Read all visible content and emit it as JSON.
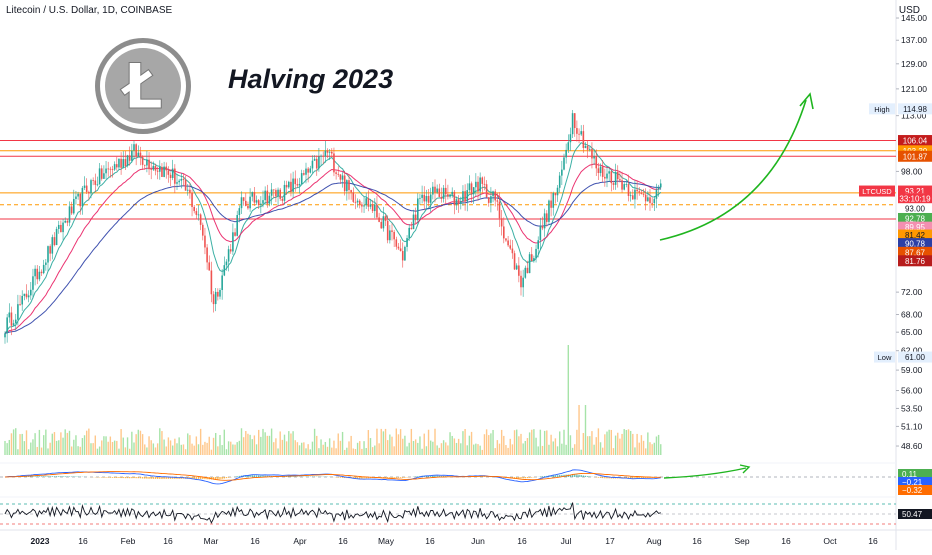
{
  "header": {
    "symbol_line": "Litecoin / U.S. Dollar, 1D, COINBASE",
    "currency": "USD"
  },
  "overlay_title": "Halving 2023",
  "logo": {
    "glyph": "Ł",
    "name": "litecoin-logo"
  },
  "colors": {
    "up": "#26a69a",
    "down": "#ef5350",
    "ema_fast": "#26a69a",
    "ema_mid": "#e91e63",
    "ema_slow": "#2b3fa6",
    "resistance": "#f23645",
    "support_orange": "#ff9800",
    "arrow": "#1fb51f",
    "volume_up": "#a6e3a8",
    "volume_down": "#ffc78a",
    "macd_line": "#2962ff",
    "signal_line": "#ff6d00"
  },
  "chart_data": {
    "type": "candlestick",
    "title": "Litecoin / U.S. Dollar, 1D, COINBASE",
    "price_axis": {
      "scale": "log",
      "ticks": [
        "145.00",
        "137.00",
        "129.00",
        "121.00",
        "113.00",
        "98.00",
        "72.00",
        "68.00",
        "65.00",
        "62.00",
        "59.00",
        "56.00",
        "53.50",
        "51.10",
        "48.60"
      ],
      "range": [
        47.5,
        148
      ]
    },
    "time_axis": {
      "ticks": [
        "2023",
        "16",
        "Feb",
        "16",
        "Mar",
        "16",
        "Apr",
        "16",
        "May",
        "16",
        "Jun",
        "16",
        "Jul",
        "17",
        "Aug",
        "16",
        "Sep",
        "16",
        "Oct",
        "16"
      ]
    },
    "horizontal_levels": [
      {
        "price": 106.04,
        "color": "resistance",
        "style": "solid"
      },
      {
        "price": 103.3,
        "color": "support_orange",
        "style": "solid"
      },
      {
        "price": 101.87,
        "color": "resistance",
        "style": "solid"
      },
      {
        "price": 92.78,
        "color": "support_orange",
        "style": "solid"
      },
      {
        "price": 86.78,
        "color": "resistance",
        "style": "solid"
      },
      {
        "price": 90.0,
        "color": "support_orange",
        "style": "dashed"
      }
    ],
    "price_labels": [
      {
        "text": "114.98",
        "tag": "High",
        "price": 114.98,
        "bg": "#e3effd",
        "fg": "#131722"
      },
      {
        "text": "106.04",
        "price": 106.04,
        "bg": "#c41c1c",
        "fg": "#ffffff"
      },
      {
        "text": "103.30",
        "price": 103.3,
        "bg": "#ff9800",
        "fg": "#ffffff"
      },
      {
        "text": "101.87",
        "price": 101.87,
        "bg": "#e65100",
        "fg": "#ffffff"
      },
      {
        "text": "93.21",
        "tag": "LTCUSD",
        "price": 93.21,
        "bg": "#f23645",
        "fg": "#ffffff"
      },
      {
        "text": "33:10:19",
        "price": 91.4,
        "bg": "#f23645",
        "fg": "#ffffff"
      },
      {
        "text": "93.00",
        "price": 89.1,
        "bg": "#ffffff",
        "fg": "#131722"
      },
      {
        "text": "92.78",
        "price": 86.9,
        "bg": "#4caf50",
        "fg": "#ffffff"
      },
      {
        "text": "89.95",
        "price": 85.0,
        "bg": "#f48fb1",
        "fg": "#ffffff"
      },
      {
        "text": "81.42",
        "price": 83.3,
        "bg": "#ff9800",
        "fg": "#131722"
      },
      {
        "text": "90.78",
        "price": 81.5,
        "bg": "#2b3fa6",
        "fg": "#ffffff"
      },
      {
        "text": "87.67",
        "price": 79.7,
        "bg": "#e65100",
        "fg": "#ffffff"
      },
      {
        "text": "81.76",
        "price": 78.0,
        "bg": "#b71c1c",
        "fg": "#ffffff"
      },
      {
        "text": "61.00",
        "tag": "Low",
        "price": 61.0,
        "bg": "#e3effd",
        "fg": "#131722"
      }
    ],
    "ohlc_anchor_closes": [
      [
        0,
        66
      ],
      [
        8,
        70
      ],
      [
        18,
        78
      ],
      [
        30,
        88
      ],
      [
        40,
        95
      ],
      [
        50,
        99
      ],
      [
        60,
        103
      ],
      [
        68,
        100
      ],
      [
        78,
        97
      ],
      [
        86,
        92
      ],
      [
        92,
        84
      ],
      [
        97,
        70
      ],
      [
        103,
        78
      ],
      [
        110,
        90
      ],
      [
        120,
        92
      ],
      [
        130,
        93
      ],
      [
        140,
        97
      ],
      [
        150,
        103
      ],
      [
        160,
        93
      ],
      [
        170,
        90
      ],
      [
        178,
        84
      ],
      [
        185,
        79
      ],
      [
        192,
        90
      ],
      [
        200,
        93
      ],
      [
        210,
        91
      ],
      [
        220,
        95
      ],
      [
        228,
        91
      ],
      [
        234,
        81
      ],
      [
        240,
        74
      ],
      [
        246,
        80
      ],
      [
        252,
        88
      ],
      [
        258,
        95
      ],
      [
        264,
        113
      ],
      [
        270,
        105
      ],
      [
        276,
        98
      ],
      [
        282,
        97
      ],
      [
        288,
        95
      ],
      [
        294,
        92
      ],
      [
        300,
        92
      ],
      [
        304,
        93
      ]
    ],
    "series": [
      {
        "name": "EMA fast",
        "color": "ema_fast"
      },
      {
        "name": "EMA mid",
        "color": "ema_mid"
      },
      {
        "name": "EMA slow",
        "color": "ema_slow"
      }
    ],
    "projection_arrow": "up-right curve toward ~122 by early September",
    "macd": {
      "labels": [
        "0.11",
        "−0.21",
        "−0.32"
      ],
      "label_colors": [
        "#4caf50",
        "#2962ff",
        "#ff6d00"
      ]
    },
    "rsi": {
      "value": "50.47",
      "levels": [
        70,
        50,
        30
      ]
    }
  }
}
